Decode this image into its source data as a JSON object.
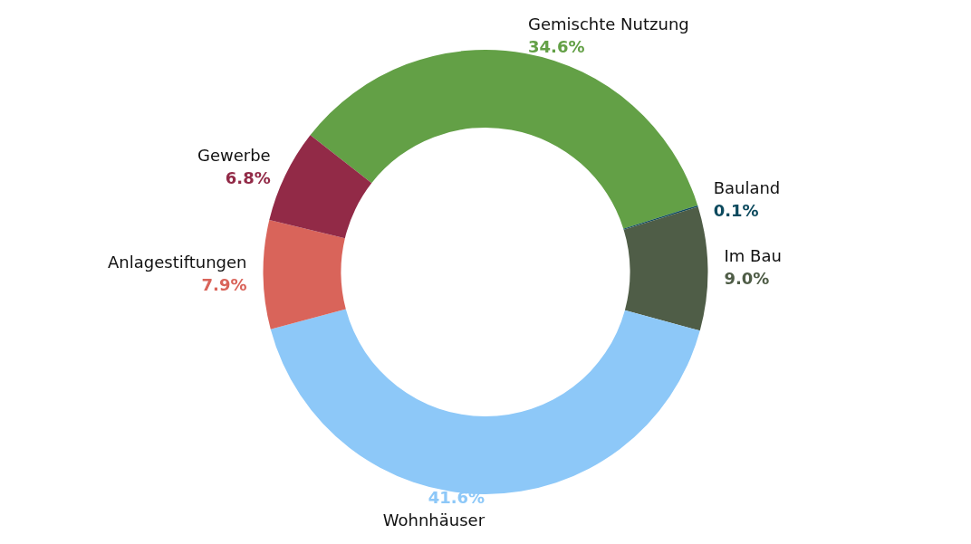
{
  "chart_data": {
    "type": "donut",
    "categories": [
      "Gemischte Nutzung",
      "Bauland",
      "Im Bau",
      "Wohnhäuser",
      "Anlagestiftungen",
      "Gewerbe"
    ],
    "values": [
      34.6,
      0.1,
      9.0,
      41.6,
      7.9,
      6.8
    ],
    "value_labels": [
      "34.6%",
      "0.1%",
      "9.0%",
      "41.6%",
      "7.9%",
      "6.8%"
    ],
    "colors": [
      "#63a046",
      "#0d4a5e",
      "#4f5d47",
      "#8dc8f8",
      "#d9645a",
      "#922a47"
    ],
    "legend": false
  }
}
